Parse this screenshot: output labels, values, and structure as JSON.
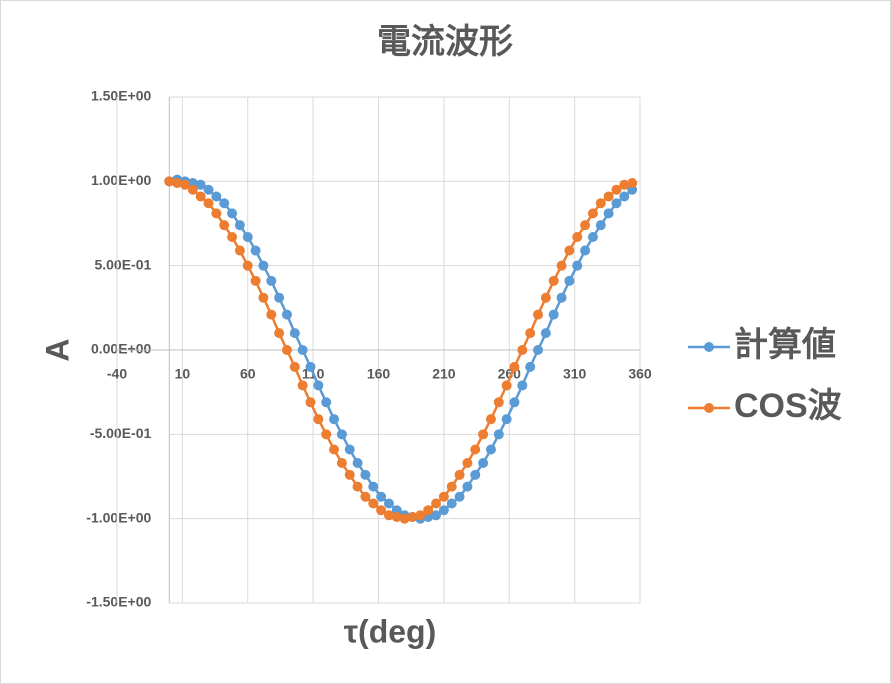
{
  "chart_data": {
    "type": "line",
    "title": "電流波形",
    "x_label": "τ(deg)",
    "y_label": "A",
    "x": [
      0,
      6,
      12,
      18,
      24,
      30,
      36,
      42,
      48,
      54,
      60,
      66,
      72,
      78,
      84,
      90,
      96,
      102,
      108,
      114,
      120,
      126,
      132,
      138,
      144,
      150,
      156,
      162,
      168,
      174,
      180,
      186,
      192,
      198,
      204,
      210,
      216,
      222,
      228,
      234,
      240,
      246,
      252,
      258,
      264,
      270,
      276,
      282,
      288,
      294,
      300,
      306,
      312,
      318,
      324,
      330,
      336,
      342,
      348,
      354
    ],
    "series": [
      {
        "name": "計算値",
        "color": "#5b9bd5",
        "values": [
          1.0,
          1.01,
          1.0,
          0.99,
          0.98,
          0.95,
          0.91,
          0.87,
          0.81,
          0.74,
          0.67,
          0.59,
          0.5,
          0.41,
          0.31,
          0.21,
          0.1,
          0,
          -0.1,
          -0.21,
          -0.31,
          -0.41,
          -0.5,
          -0.59,
          -0.67,
          -0.74,
          -0.81,
          -0.87,
          -0.91,
          -0.95,
          -0.98,
          -0.99,
          -1,
          -0.99,
          -0.98,
          -0.95,
          -0.91,
          -0.87,
          -0.81,
          -0.74,
          -0.67,
          -0.59,
          -0.5,
          -0.41,
          -0.31,
          -0.21,
          -0.1,
          0,
          0.1,
          0.21,
          0.31,
          0.41,
          0.5,
          0.59,
          0.67,
          0.74,
          0.81,
          0.87,
          0.91,
          0.95
        ]
      },
      {
        "name": "COS波",
        "color": "#ed7d31",
        "values": [
          1.0,
          0.99,
          0.98,
          0.95,
          0.91,
          0.87,
          0.81,
          0.74,
          0.67,
          0.59,
          0.5,
          0.41,
          0.31,
          0.21,
          0.1,
          0,
          -0.1,
          -0.21,
          -0.31,
          -0.41,
          -0.5,
          -0.59,
          -0.67,
          -0.74,
          -0.81,
          -0.87,
          -0.91,
          -0.95,
          -0.98,
          -0.99,
          -1,
          -0.99,
          -0.98,
          -0.95,
          -0.91,
          -0.87,
          -0.81,
          -0.74,
          -0.67,
          -0.59,
          -0.5,
          -0.41,
          -0.31,
          -0.21,
          -0.1,
          0,
          0.1,
          0.21,
          0.31,
          0.41,
          0.5,
          0.59,
          0.67,
          0.74,
          0.81,
          0.87,
          0.91,
          0.95,
          0.98,
          0.99
        ]
      }
    ],
    "xlim": [
      -40,
      360
    ],
    "xticks": [
      -40,
      10,
      60,
      110,
      160,
      210,
      260,
      310,
      360
    ],
    "ylim": [
      -1.5,
      1.5
    ],
    "yticks": [
      {
        "value": -1.5,
        "label": "-1.50E+00"
      },
      {
        "value": -1.0,
        "label": "-1.00E+00"
      },
      {
        "value": -0.5,
        "label": "-5.00E-01"
      },
      {
        "value": 0,
        "label": "0.00E+00"
      },
      {
        "value": 0.5,
        "label": "5.00E-01"
      },
      {
        "value": 1.0,
        "label": "1.00E+00"
      },
      {
        "value": 1.5,
        "label": "1.50E+00"
      }
    ],
    "grid": true,
    "legend": "right"
  }
}
